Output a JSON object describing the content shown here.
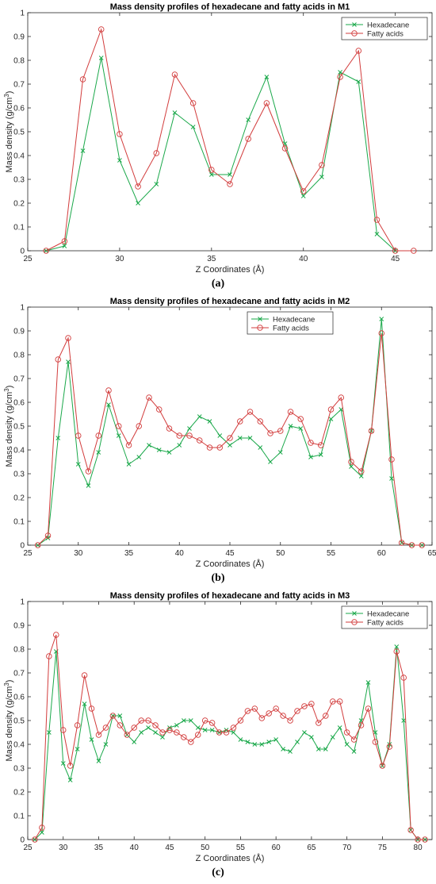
{
  "chart_data": [
    {
      "type": "line",
      "title": "Mass density profiles of hexadecane and fatty acids in M1",
      "xlabel": "Z Coordinates (Å)",
      "ylabel_main": "Mass density (g/cm",
      "ylabel_sup": "3",
      "ylabel_tail": ")",
      "xlim": [
        25,
        47
      ],
      "ylim": [
        0,
        1
      ],
      "xticks": [
        25,
        30,
        35,
        40,
        45
      ],
      "yticks": [
        0,
        0.1,
        0.2,
        0.3,
        0.4,
        0.5,
        0.6,
        0.7,
        0.8,
        0.9,
        1
      ],
      "legend": "top-right",
      "caption": "(a)",
      "series": [
        {
          "name": "Hexadecane",
          "color": "#1aa84a",
          "marker": "x",
          "x": [
            26,
            27,
            28,
            29,
            30,
            31,
            32,
            33,
            34,
            35,
            36,
            37,
            38,
            39,
            40,
            41,
            42,
            43,
            44,
            45
          ],
          "y": [
            0.0,
            0.02,
            0.42,
            0.81,
            0.38,
            0.2,
            0.28,
            0.58,
            0.52,
            0.32,
            0.32,
            0.55,
            0.73,
            0.45,
            0.23,
            0.31,
            0.75,
            0.71,
            0.07,
            0.0
          ]
        },
        {
          "name": "Fatty acids",
          "color": "#d23c3c",
          "marker": "o",
          "x": [
            26,
            27,
            28,
            29,
            30,
            31,
            32,
            33,
            34,
            35,
            36,
            37,
            38,
            39,
            40,
            41,
            42,
            43,
            44,
            45,
            46
          ],
          "y": [
            0.0,
            0.04,
            0.72,
            0.93,
            0.49,
            0.27,
            0.41,
            0.74,
            0.62,
            0.34,
            0.28,
            0.47,
            0.62,
            0.43,
            0.25,
            0.36,
            0.73,
            0.84,
            0.13,
            0.0,
            0.0
          ]
        }
      ]
    },
    {
      "type": "line",
      "title": "Mass density profiles of hexadecane and fatty acids in M2",
      "xlabel": "Z Coordinates (Å)",
      "ylabel_main": "Mass density (g/cm",
      "ylabel_sup": "3",
      "ylabel_tail": ")",
      "xlim": [
        25,
        65
      ],
      "ylim": [
        0,
        1
      ],
      "xticks": [
        25,
        30,
        35,
        40,
        45,
        50,
        55,
        60,
        65
      ],
      "yticks": [
        0,
        0.1,
        0.2,
        0.3,
        0.4,
        0.5,
        0.6,
        0.7,
        0.8,
        0.9,
        1
      ],
      "legend": "top-center",
      "caption": "(b)",
      "series": [
        {
          "name": "Hexadecane",
          "color": "#1aa84a",
          "marker": "x",
          "x": [
            26,
            27,
            28,
            29,
            30,
            31,
            32,
            33,
            34,
            35,
            36,
            37,
            38,
            39,
            40,
            41,
            42,
            43,
            44,
            45,
            46,
            47,
            48,
            49,
            50,
            51,
            52,
            53,
            54,
            55,
            56,
            57,
            58,
            59,
            60,
            61,
            62,
            63,
            64
          ],
          "y": [
            0.0,
            0.03,
            0.45,
            0.77,
            0.34,
            0.25,
            0.39,
            0.59,
            0.46,
            0.34,
            0.37,
            0.42,
            0.4,
            0.39,
            0.42,
            0.49,
            0.54,
            0.52,
            0.46,
            0.42,
            0.45,
            0.45,
            0.41,
            0.35,
            0.39,
            0.5,
            0.49,
            0.37,
            0.38,
            0.53,
            0.57,
            0.33,
            0.29,
            0.48,
            0.95,
            0.28,
            0.01,
            0.0,
            0.0
          ]
        },
        {
          "name": "Fatty acids",
          "color": "#d23c3c",
          "marker": "o",
          "x": [
            26,
            27,
            28,
            29,
            30,
            31,
            32,
            33,
            34,
            35,
            36,
            37,
            38,
            39,
            40,
            41,
            42,
            43,
            44,
            45,
            46,
            47,
            48,
            49,
            50,
            51,
            52,
            53,
            54,
            55,
            56,
            57,
            58,
            59,
            60,
            61,
            62,
            63,
            64
          ],
          "y": [
            0.0,
            0.04,
            0.78,
            0.87,
            0.46,
            0.31,
            0.46,
            0.65,
            0.5,
            0.42,
            0.5,
            0.62,
            0.57,
            0.49,
            0.46,
            0.46,
            0.44,
            0.41,
            0.41,
            0.45,
            0.52,
            0.56,
            0.52,
            0.47,
            0.48,
            0.56,
            0.53,
            0.43,
            0.42,
            0.57,
            0.62,
            0.35,
            0.31,
            0.48,
            0.89,
            0.36,
            0.01,
            0.0,
            0.0
          ]
        }
      ]
    },
    {
      "type": "line",
      "title": "Mass density profiles of hexadecane and fatty acids in M3",
      "xlabel": "Z Coordinates (Å)",
      "ylabel_main": "Mass density (g/cm",
      "ylabel_sup": "3",
      "ylabel_tail": ")",
      "xlim": [
        25,
        82
      ],
      "ylim": [
        0,
        1
      ],
      "xticks": [
        25,
        30,
        35,
        40,
        45,
        50,
        55,
        60,
        65,
        70,
        75,
        80
      ],
      "yticks": [
        0,
        0.1,
        0.2,
        0.3,
        0.4,
        0.5,
        0.6,
        0.7,
        0.8,
        0.9,
        1
      ],
      "legend": "top-right",
      "caption": "(c)",
      "series": [
        {
          "name": "Hexadecane",
          "color": "#1aa84a",
          "marker": "x",
          "x": [
            26,
            27,
            28,
            29,
            30,
            31,
            32,
            33,
            34,
            35,
            36,
            37,
            38,
            39,
            40,
            41,
            42,
            43,
            44,
            45,
            46,
            47,
            48,
            49,
            50,
            51,
            52,
            53,
            54,
            55,
            56,
            57,
            58,
            59,
            60,
            61,
            62,
            63,
            64,
            65,
            66,
            67,
            68,
            69,
            70,
            71,
            72,
            73,
            74,
            75,
            76,
            77,
            78,
            79,
            80,
            81
          ],
          "y": [
            0.0,
            0.03,
            0.45,
            0.79,
            0.32,
            0.25,
            0.38,
            0.57,
            0.42,
            0.33,
            0.4,
            0.52,
            0.52,
            0.44,
            0.41,
            0.45,
            0.47,
            0.45,
            0.43,
            0.47,
            0.48,
            0.5,
            0.5,
            0.47,
            0.46,
            0.46,
            0.45,
            0.46,
            0.45,
            0.42,
            0.41,
            0.4,
            0.4,
            0.41,
            0.42,
            0.38,
            0.37,
            0.41,
            0.45,
            0.43,
            0.38,
            0.38,
            0.43,
            0.47,
            0.4,
            0.37,
            0.5,
            0.66,
            0.45,
            0.31,
            0.4,
            0.81,
            0.5,
            0.04,
            0.0,
            0.0
          ]
        },
        {
          "name": "Fatty acids",
          "color": "#d23c3c",
          "marker": "o",
          "x": [
            26,
            27,
            28,
            29,
            30,
            31,
            32,
            33,
            34,
            35,
            36,
            37,
            38,
            39,
            40,
            41,
            42,
            43,
            44,
            45,
            46,
            47,
            48,
            49,
            50,
            51,
            52,
            53,
            54,
            55,
            56,
            57,
            58,
            59,
            60,
            61,
            62,
            63,
            64,
            65,
            66,
            67,
            68,
            69,
            70,
            71,
            72,
            73,
            74,
            75,
            76,
            77,
            78,
            79,
            80,
            81
          ],
          "y": [
            0.0,
            0.05,
            0.77,
            0.86,
            0.46,
            0.31,
            0.48,
            0.69,
            0.55,
            0.44,
            0.47,
            0.52,
            0.48,
            0.44,
            0.47,
            0.5,
            0.5,
            0.48,
            0.45,
            0.46,
            0.45,
            0.43,
            0.41,
            0.44,
            0.5,
            0.49,
            0.45,
            0.45,
            0.47,
            0.5,
            0.54,
            0.55,
            0.51,
            0.53,
            0.55,
            0.52,
            0.5,
            0.54,
            0.56,
            0.57,
            0.49,
            0.52,
            0.58,
            0.58,
            0.45,
            0.42,
            0.48,
            0.55,
            0.41,
            0.31,
            0.39,
            0.79,
            0.68,
            0.04,
            0.0,
            0.0
          ]
        }
      ]
    }
  ]
}
